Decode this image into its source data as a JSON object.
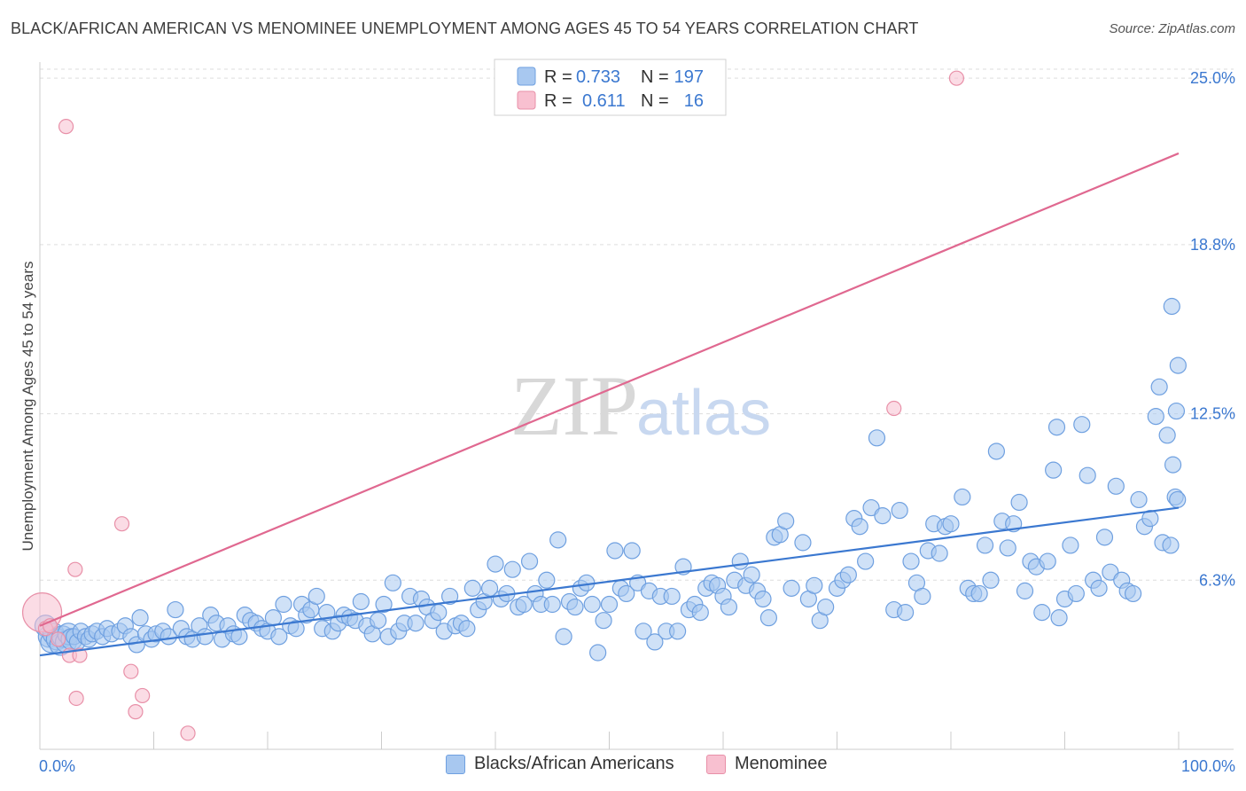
{
  "title": "BLACK/AFRICAN AMERICAN VS MENOMINEE UNEMPLOYMENT AMONG AGES 45 TO 54 YEARS CORRELATION CHART",
  "source": "Source: ZipAtlas.com",
  "watermark": {
    "zip": "ZIP",
    "atlas": "atlas"
  },
  "colors": {
    "blue": "#3b78d0",
    "blue_fill": "#a8c8f0",
    "blue_stroke": "#6fa0e0",
    "pink": "#e06890",
    "pink_fill": "#f8c0d0",
    "pink_stroke": "#e890a8",
    "grid": "#dddddd",
    "axis": "#cccccc"
  },
  "legend": {
    "rows": [
      {
        "r_label": "R =",
        "r_value": "0.733",
        "n_label": "N =",
        "n_value": "197"
      },
      {
        "r_label": "R =",
        "r_value": "0.611",
        "n_label": "N =",
        "n_value": "16"
      }
    ]
  },
  "chart_data": {
    "type": "scatter",
    "title": "BLACK/AFRICAN AMERICAN VS MENOMINEE UNEMPLOYMENT AMONG AGES 45 TO 54 YEARS CORRELATION CHART",
    "xlabel": "",
    "ylabel": "Unemployment Among Ages 45 to 54 years",
    "xlim": [
      0,
      100
    ],
    "ylim": [
      0,
      25.6
    ],
    "x_tick_labels": [
      "0.0%",
      "100.0%"
    ],
    "y_ticks": [
      6.3,
      12.5,
      18.8,
      25.0
    ],
    "y_tick_labels": [
      "6.3%",
      "12.5%",
      "18.8%",
      "25.0%"
    ],
    "grid": true,
    "series": [
      {
        "name": "Blacks/African Americans",
        "color": "blue",
        "r": 0.733,
        "n": 197,
        "trend": [
          [
            0,
            3.5
          ],
          [
            100,
            9.0
          ]
        ],
        "points": [
          [
            0.5,
            4.6
          ],
          [
            0.8,
            4.2
          ],
          [
            1.0,
            4.0
          ],
          [
            1.2,
            4.3
          ],
          [
            1.5,
            4.1
          ],
          [
            1.8,
            3.9
          ],
          [
            2.0,
            4.2
          ],
          [
            2.3,
            4.0
          ],
          [
            2.5,
            4.3
          ],
          [
            2.8,
            4.1
          ],
          [
            3.0,
            4.2
          ],
          [
            3.3,
            4.0
          ],
          [
            3.6,
            4.4
          ],
          [
            4.0,
            4.2
          ],
          [
            4.3,
            4.1
          ],
          [
            4.6,
            4.3
          ],
          [
            5.0,
            4.4
          ],
          [
            5.5,
            4.2
          ],
          [
            5.9,
            4.5
          ],
          [
            6.3,
            4.3
          ],
          [
            7.0,
            4.4
          ],
          [
            7.5,
            4.6
          ],
          [
            8.0,
            4.2
          ],
          [
            8.5,
            3.9
          ],
          [
            8.8,
            4.9
          ],
          [
            9.3,
            4.3
          ],
          [
            9.8,
            4.1
          ],
          [
            10.2,
            4.3
          ],
          [
            10.8,
            4.4
          ],
          [
            11.3,
            4.2
          ],
          [
            11.9,
            5.2
          ],
          [
            12.4,
            4.5
          ],
          [
            12.9,
            4.2
          ],
          [
            13.4,
            4.1
          ],
          [
            14.0,
            4.6
          ],
          [
            14.5,
            4.2
          ],
          [
            15.0,
            5.0
          ],
          [
            15.5,
            4.7
          ],
          [
            16.0,
            4.1
          ],
          [
            16.5,
            4.6
          ],
          [
            17.0,
            4.3
          ],
          [
            17.5,
            4.2
          ],
          [
            18.0,
            5.0
          ],
          [
            18.5,
            4.8
          ],
          [
            19.0,
            4.7
          ],
          [
            19.5,
            4.5
          ],
          [
            20.0,
            4.4
          ],
          [
            20.5,
            4.9
          ],
          [
            21.0,
            4.2
          ],
          [
            21.4,
            5.4
          ],
          [
            22.0,
            4.6
          ],
          [
            22.5,
            4.5
          ],
          [
            23.0,
            5.4
          ],
          [
            23.4,
            5.0
          ],
          [
            23.8,
            5.2
          ],
          [
            24.3,
            5.7
          ],
          [
            24.8,
            4.5
          ],
          [
            25.2,
            5.1
          ],
          [
            25.7,
            4.4
          ],
          [
            26.2,
            4.7
          ],
          [
            26.7,
            5.0
          ],
          [
            27.2,
            4.9
          ],
          [
            27.7,
            4.8
          ],
          [
            28.2,
            5.5
          ],
          [
            28.7,
            4.6
          ],
          [
            29.2,
            4.3
          ],
          [
            29.7,
            4.8
          ],
          [
            30.2,
            5.4
          ],
          [
            30.6,
            4.2
          ],
          [
            31.0,
            6.2
          ],
          [
            31.5,
            4.4
          ],
          [
            32.0,
            4.7
          ],
          [
            32.5,
            5.7
          ],
          [
            33.0,
            4.7
          ],
          [
            33.5,
            5.6
          ],
          [
            34.0,
            5.3
          ],
          [
            34.5,
            4.8
          ],
          [
            35.0,
            5.1
          ],
          [
            35.5,
            4.4
          ],
          [
            36.0,
            5.7
          ],
          [
            36.5,
            4.6
          ],
          [
            37.0,
            4.7
          ],
          [
            37.5,
            4.5
          ],
          [
            38.0,
            6.0
          ],
          [
            38.5,
            5.2
          ],
          [
            39.0,
            5.5
          ],
          [
            39.5,
            6.0
          ],
          [
            40.0,
            6.9
          ],
          [
            40.5,
            5.6
          ],
          [
            41.0,
            5.8
          ],
          [
            41.5,
            6.7
          ],
          [
            42.0,
            5.3
          ],
          [
            42.5,
            5.4
          ],
          [
            43.0,
            7.0
          ],
          [
            43.5,
            5.8
          ],
          [
            44.0,
            5.4
          ],
          [
            44.5,
            6.3
          ],
          [
            45.0,
            5.4
          ],
          [
            45.5,
            7.8
          ],
          [
            46.0,
            4.2
          ],
          [
            46.5,
            5.5
          ],
          [
            47.0,
            5.3
          ],
          [
            47.5,
            6.0
          ],
          [
            48.0,
            6.2
          ],
          [
            48.5,
            5.4
          ],
          [
            49.0,
            3.6
          ],
          [
            49.5,
            4.8
          ],
          [
            50.0,
            5.4
          ],
          [
            50.5,
            7.4
          ],
          [
            51.0,
            6.0
          ],
          [
            51.5,
            5.8
          ],
          [
            52.0,
            7.4
          ],
          [
            52.5,
            6.2
          ],
          [
            53.0,
            4.4
          ],
          [
            53.5,
            5.9
          ],
          [
            54.0,
            4.0
          ],
          [
            54.5,
            5.7
          ],
          [
            55.0,
            4.4
          ],
          [
            55.5,
            5.7
          ],
          [
            56.0,
            4.4
          ],
          [
            56.5,
            6.8
          ],
          [
            57.0,
            5.2
          ],
          [
            57.5,
            5.4
          ],
          [
            58.0,
            5.1
          ],
          [
            58.5,
            6.0
          ],
          [
            59.0,
            6.2
          ],
          [
            59.5,
            6.1
          ],
          [
            60.0,
            5.7
          ],
          [
            60.5,
            5.3
          ],
          [
            61.0,
            6.3
          ],
          [
            61.5,
            7.0
          ],
          [
            62.0,
            6.1
          ],
          [
            62.5,
            6.5
          ],
          [
            63.0,
            5.9
          ],
          [
            63.5,
            5.6
          ],
          [
            64.0,
            4.9
          ],
          [
            64.5,
            7.9
          ],
          [
            65.0,
            8.0
          ],
          [
            65.5,
            8.5
          ],
          [
            66.0,
            6.0
          ],
          [
            67.0,
            7.7
          ],
          [
            67.5,
            5.6
          ],
          [
            68.0,
            6.1
          ],
          [
            68.5,
            4.8
          ],
          [
            69.0,
            5.3
          ],
          [
            70.0,
            6.0
          ],
          [
            70.5,
            6.3
          ],
          [
            71.0,
            6.5
          ],
          [
            71.5,
            8.6
          ],
          [
            72.0,
            8.3
          ],
          [
            72.5,
            7.0
          ],
          [
            73.0,
            9.0
          ],
          [
            73.5,
            11.6
          ],
          [
            74.0,
            8.7
          ],
          [
            75.0,
            5.2
          ],
          [
            75.5,
            8.9
          ],
          [
            76.0,
            5.1
          ],
          [
            76.5,
            7.0
          ],
          [
            77.0,
            6.2
          ],
          [
            77.5,
            5.7
          ],
          [
            78.0,
            7.4
          ],
          [
            78.5,
            8.4
          ],
          [
            79.0,
            7.3
          ],
          [
            79.5,
            8.3
          ],
          [
            80.0,
            8.4
          ],
          [
            81.0,
            9.4
          ],
          [
            81.5,
            6.0
          ],
          [
            82.0,
            5.8
          ],
          [
            82.5,
            5.8
          ],
          [
            83.0,
            7.6
          ],
          [
            83.5,
            6.3
          ],
          [
            84.0,
            11.1
          ],
          [
            84.5,
            8.5
          ],
          [
            85.0,
            7.5
          ],
          [
            85.5,
            8.4
          ],
          [
            86.0,
            9.2
          ],
          [
            86.5,
            5.9
          ],
          [
            87.0,
            7.0
          ],
          [
            87.5,
            6.8
          ],
          [
            88.0,
            5.1
          ],
          [
            88.5,
            7.0
          ],
          [
            89.0,
            10.4
          ],
          [
            89.3,
            12.0
          ],
          [
            89.5,
            4.9
          ],
          [
            90.0,
            5.6
          ],
          [
            90.5,
            7.6
          ],
          [
            91.0,
            5.8
          ],
          [
            91.5,
            12.1
          ],
          [
            92.0,
            10.2
          ],
          [
            92.5,
            6.3
          ],
          [
            93.0,
            6.0
          ],
          [
            93.5,
            7.9
          ],
          [
            94.0,
            6.6
          ],
          [
            94.5,
            9.8
          ],
          [
            95.0,
            6.3
          ],
          [
            95.5,
            5.9
          ],
          [
            96.0,
            5.8
          ],
          [
            96.5,
            9.3
          ],
          [
            97.0,
            8.3
          ],
          [
            97.5,
            8.6
          ],
          [
            98.0,
            12.4
          ],
          [
            98.3,
            13.5
          ],
          [
            98.6,
            7.7
          ],
          [
            99.0,
            11.7
          ],
          [
            99.3,
            7.6
          ],
          [
            99.5,
            10.6
          ],
          [
            99.7,
            9.4
          ],
          [
            99.9,
            9.3
          ],
          [
            99.4,
            16.5
          ],
          [
            99.8,
            12.6
          ],
          [
            99.95,
            14.3
          ]
        ]
      },
      {
        "name": "Menominee",
        "color": "pink",
        "r": 0.611,
        "n": 16,
        "trend": [
          [
            0,
            4.6
          ],
          [
            100,
            22.2
          ]
        ],
        "points": [
          [
            0.2,
            5.1
          ],
          [
            0.5,
            4.5
          ],
          [
            0.9,
            4.6
          ],
          [
            1.6,
            4.1
          ],
          [
            2.3,
            23.2
          ],
          [
            2.6,
            3.5
          ],
          [
            3.1,
            6.7
          ],
          [
            3.2,
            1.9
          ],
          [
            3.5,
            3.5
          ],
          [
            7.2,
            8.4
          ],
          [
            8.0,
            2.9
          ],
          [
            8.4,
            1.4
          ],
          [
            9.0,
            2.0
          ],
          [
            13.0,
            0.6
          ],
          [
            75.0,
            12.7
          ],
          [
            80.5,
            25.0
          ]
        ]
      }
    ]
  },
  "bottom_legend": {
    "blue_label": "Blacks/African Americans",
    "pink_label": "Menominee"
  }
}
